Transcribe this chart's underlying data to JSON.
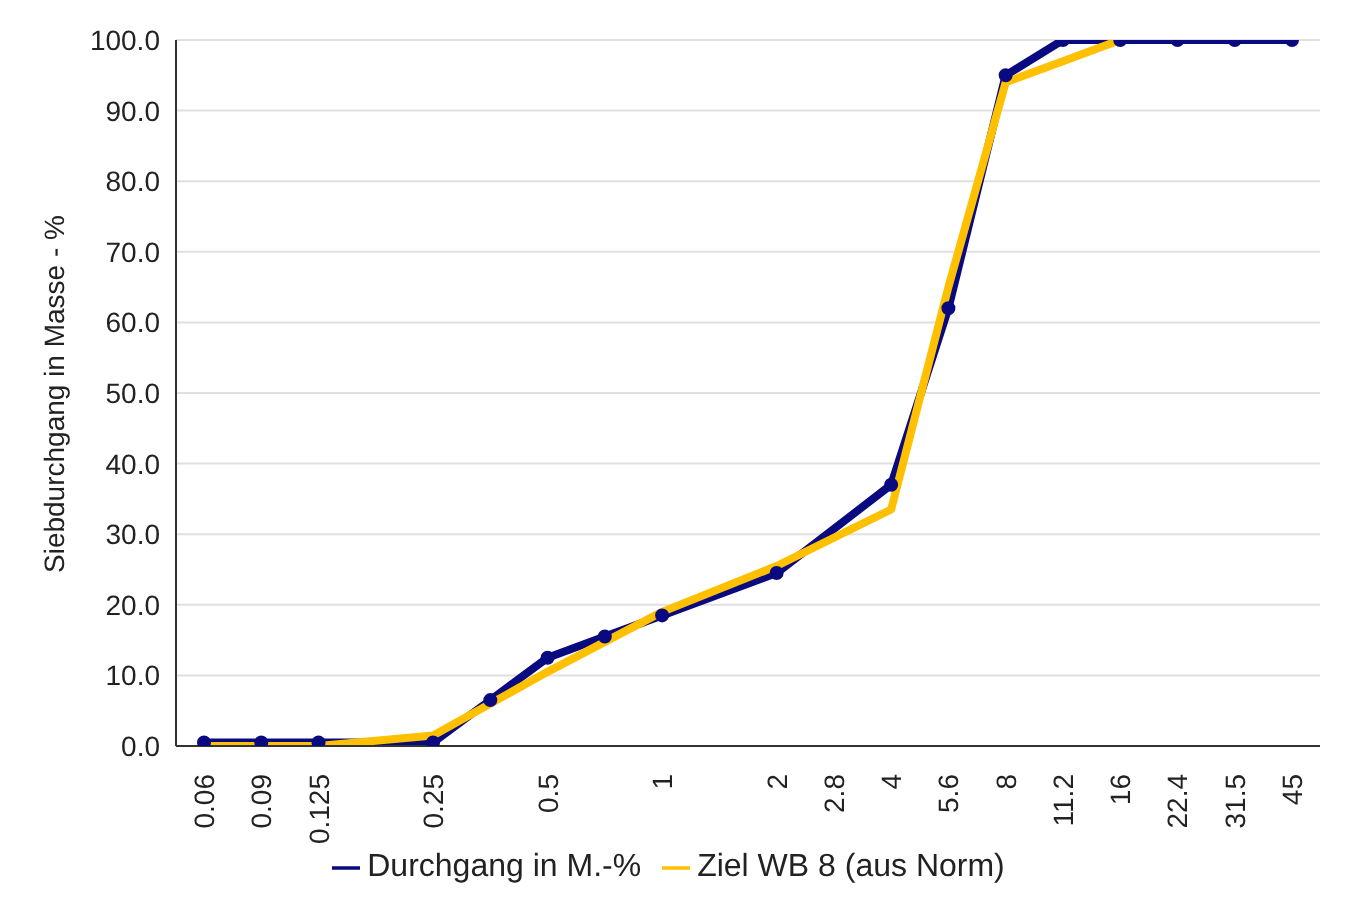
{
  "chart_data": {
    "type": "line",
    "ylabel": "Siebdurchgang in Masse - %",
    "categories": [
      "0.06",
      "0.09",
      "0.125",
      null,
      "0.25",
      null,
      "0.5",
      null,
      "1",
      null,
      "2",
      "2.8",
      "4",
      "5.6",
      "8",
      "11.2",
      "16",
      "22.4",
      "31.5",
      "45"
    ],
    "series": [
      {
        "name": "Durchgang in M.-%",
        "color": "#0a0a80",
        "marker": "circle",
        "values": [
          0.5,
          0.5,
          0.5,
          null,
          0.5,
          6.5,
          12.5,
          15.5,
          18.5,
          null,
          24.5,
          null,
          37,
          62,
          95,
          100,
          100,
          100,
          100,
          100
        ]
      },
      {
        "name": "Ziel WB 8 (aus Norm)",
        "color": "#ffc000",
        "marker": "none",
        "values": [
          0,
          0,
          0,
          null,
          1.5,
          null,
          10.5,
          null,
          19,
          null,
          25.5,
          null,
          33.5,
          65,
          94,
          97,
          100,
          null,
          null,
          null
        ]
      }
    ],
    "ylim": [
      0,
      100
    ],
    "yticks": [
      {
        "value": 0,
        "label": "0.0"
      },
      {
        "value": 10,
        "label": "10.0"
      },
      {
        "value": 20,
        "label": "20.0"
      },
      {
        "value": 30,
        "label": "30.0"
      },
      {
        "value": 40,
        "label": "40.0"
      },
      {
        "value": 50,
        "label": "50.0"
      },
      {
        "value": 60,
        "label": "60.0"
      },
      {
        "value": 70,
        "label": "70.0"
      },
      {
        "value": 80,
        "label": "80.0"
      },
      {
        "value": 90,
        "label": "90.0"
      },
      {
        "value": 100,
        "label": "100.0"
      }
    ],
    "grid": "y",
    "legend": "bottom"
  }
}
